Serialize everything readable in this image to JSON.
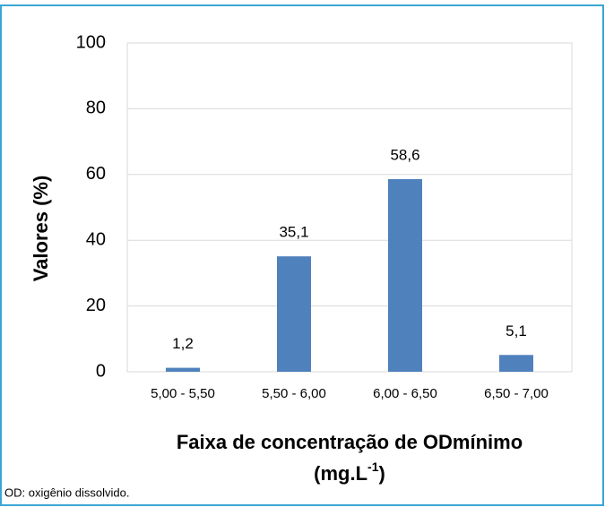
{
  "chart_data": {
    "type": "bar",
    "categories": [
      "5,00 - 5,50",
      "5,50 - 6,00",
      "6,00 - 6,50",
      "6,50 - 7,00"
    ],
    "values": [
      1.2,
      35.1,
      58.6,
      5.1
    ],
    "value_labels": [
      "1,2",
      "35,1",
      "58,6",
      "5,1"
    ],
    "color": "#4f81bd",
    "ylim": [
      0,
      100
    ],
    "yticks": [
      0,
      20,
      40,
      60,
      80,
      100
    ],
    "grid": true,
    "y_label": "Valores (%)",
    "x_label": {
      "line1": "Faixa de concentração de ODmínimo",
      "line2": "(mg.L",
      "sup": "-1",
      "end": ")"
    },
    "footnote": "OD: oxigênio dissolvido."
  }
}
